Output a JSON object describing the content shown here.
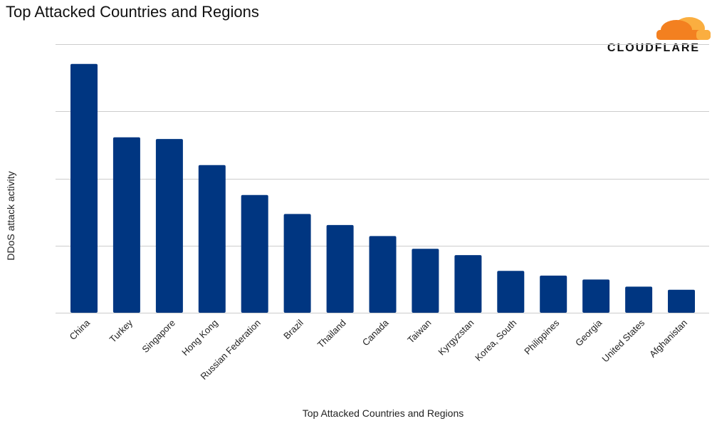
{
  "chart_data": {
    "type": "bar",
    "title": "Top Attacked Countries and Regions",
    "xlabel": "Top Attacked Countries and Regions",
    "ylabel": "DDoS attack activity",
    "categories": [
      "China",
      "Turkey",
      "Singapore",
      "Hong Kong",
      "Russian Federation",
      "Brazil",
      "Thailand",
      "Canada",
      "Taiwan",
      "Kyrgyzstan",
      "Korea, South",
      "Philippines",
      "Georgia",
      "United States",
      "Afghanistan"
    ],
    "values": [
      31.5,
      22.2,
      22.0,
      18.7,
      14.9,
      12.5,
      11.1,
      9.7,
      8.1,
      7.3,
      5.3,
      4.7,
      4.2,
      3.3,
      2.9
    ],
    "ylim": [
      0,
      34
    ],
    "y_tick_labels_shown": false,
    "grid": true,
    "bar_color": "#003681",
    "grid_color": "#cccccc"
  },
  "brand": {
    "name": "CLOUDFLARE",
    "cloud_color_front": "#f38020",
    "cloud_color_back": "#faae40"
  }
}
